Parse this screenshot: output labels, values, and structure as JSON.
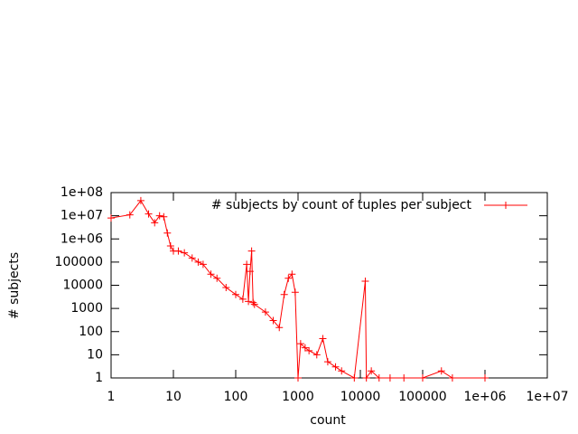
{
  "chart_data": {
    "type": "line",
    "title": "",
    "xlabel": "count",
    "ylabel": "# subjects",
    "xlog": true,
    "ylog": true,
    "xlim": [
      1,
      10000000
    ],
    "xticks": [
      1,
      10,
      100,
      1000,
      10000,
      100000,
      {
        "value": 1000000,
        "label": "1e+06"
      },
      {
        "value": 10000000,
        "label": "1e+07"
      }
    ],
    "ylim": [
      1,
      100000000
    ],
    "yticks": [
      1,
      10,
      100,
      1000,
      10000,
      100000,
      {
        "value": 1000000,
        "label": "1e+06"
      },
      {
        "value": 10000000,
        "label": "1e+07"
      },
      {
        "value": 100000000,
        "label": "1e+08"
      }
    ],
    "legend": "top-right",
    "series": [
      {
        "name": "# subjects by count of tuples per subject",
        "color": "#ff0000",
        "x": [
          1,
          2,
          3,
          4,
          5,
          6,
          7,
          8,
          9,
          10,
          12,
          15,
          20,
          25,
          30,
          40,
          50,
          70,
          100,
          130,
          150,
          160,
          170,
          180,
          190,
          200,
          300,
          400,
          500,
          600,
          700,
          800,
          900,
          1000,
          1100,
          1300,
          1500,
          2000,
          2500,
          3000,
          4000,
          5000,
          8000,
          12000,
          12500,
          15000,
          20000,
          30000,
          50000,
          100000,
          200000,
          300000,
          1000000
        ],
        "values": [
          8000000,
          11000000,
          45000000,
          12000000,
          5000000,
          10000000,
          9000000,
          1800000,
          500000,
          300000,
          300000,
          250000,
          150000,
          100000,
          80000,
          30000,
          20000,
          8000,
          4000,
          2500,
          80000,
          2000,
          40000,
          300000,
          1800,
          1500,
          700,
          300,
          150,
          4000,
          20000,
          30000,
          5000,
          1,
          30,
          20,
          15,
          10,
          50,
          5,
          3,
          2,
          1,
          15000,
          1,
          2,
          1,
          1,
          1,
          1,
          2,
          1,
          1
        ]
      }
    ]
  }
}
